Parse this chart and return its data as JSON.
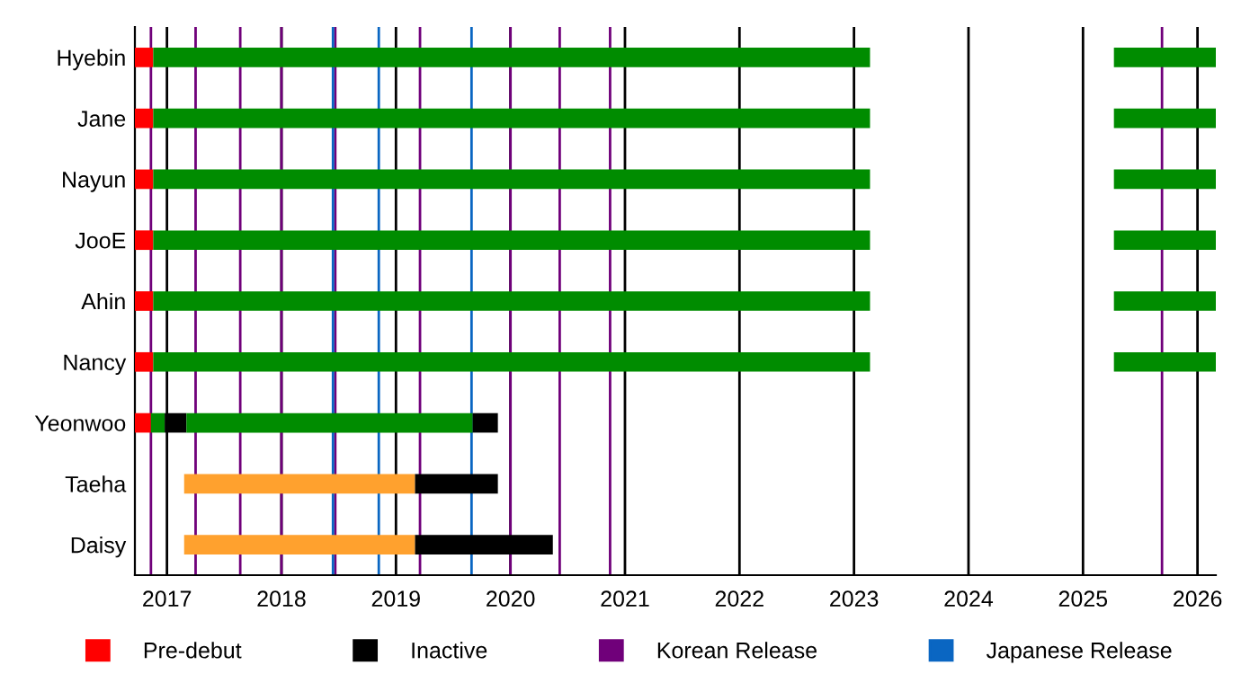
{
  "chart_data": {
    "type": "bar",
    "orientation": "horizontal",
    "categories": [
      "Hyebin",
      "Jane",
      "Nayun",
      "JooE",
      "Ahin",
      "Nancy",
      "Yeonwoo",
      "Taeha",
      "Daisy"
    ],
    "series": [
      {
        "name": "Pre-debut",
        "color": "#ff0000",
        "base": [
          2016.72,
          2016.72,
          2016.72,
          2016.72,
          2016.72,
          2016.72,
          2016.72,
          null,
          null
        ],
        "values": [
          0.16,
          0.16,
          0.16,
          0.16,
          0.16,
          0.16,
          0.14,
          null,
          null
        ]
      },
      {
        "color": "#008c00",
        "base": [
          2016.88,
          2016.88,
          2016.88,
          2016.88,
          2016.88,
          2016.88,
          2016.86,
          null,
          null
        ],
        "values": [
          6.26,
          6.26,
          6.26,
          6.26,
          6.26,
          6.26,
          0.12,
          null,
          null
        ]
      },
      {
        "name": "Inactive",
        "color": "#000000",
        "base": [
          null,
          null,
          null,
          null,
          null,
          null,
          2016.98,
          2019.165,
          2019.165
        ],
        "values": [
          null,
          null,
          null,
          null,
          null,
          null,
          0.19,
          0.725,
          1.205
        ]
      },
      {
        "color": "#008c00",
        "base": [
          2025.27,
          2025.27,
          2025.27,
          2025.27,
          2025.27,
          2025.27,
          2017.17,
          null,
          null
        ],
        "values": [
          0.89,
          0.89,
          0.89,
          0.89,
          0.89,
          0.89,
          2.5,
          null,
          null
        ]
      },
      {
        "color": "#000000",
        "base": [
          null,
          null,
          null,
          null,
          null,
          null,
          2019.67,
          null,
          null
        ],
        "values": [
          null,
          null,
          null,
          null,
          null,
          null,
          0.22,
          null,
          null
        ]
      },
      {
        "color": "#ffa12e",
        "base": [
          null,
          null,
          null,
          null,
          null,
          null,
          null,
          2017.15,
          2017.15
        ],
        "values": [
          null,
          null,
          null,
          null,
          null,
          null,
          null,
          2.015,
          2.015
        ]
      }
    ],
    "xlim": [
      2016.72,
      2026.16
    ],
    "xticks": [
      2017,
      2018,
      2019,
      2020,
      2021,
      2022,
      2023,
      2024,
      2025,
      2026
    ],
    "grid": "x",
    "legend": "bottom",
    "ref_lines": [
      {
        "axis": "x",
        "value": 2016.86,
        "label": "Korean Release",
        "color": "#70007a"
      },
      {
        "axis": "x",
        "value": 2017.25,
        "color": "#70007a"
      },
      {
        "axis": "x",
        "value": 2017.64,
        "color": "#70007a"
      },
      {
        "axis": "x",
        "value": 2018.0,
        "color": "#70007a"
      },
      {
        "axis": "x",
        "value": 2018.47,
        "color": "#70007a"
      },
      {
        "axis": "x",
        "value": 2019.21,
        "color": "#70007a"
      },
      {
        "axis": "x",
        "value": 2020.0,
        "color": "#70007a"
      },
      {
        "axis": "x",
        "value": 2020.43,
        "color": "#70007a"
      },
      {
        "axis": "x",
        "value": 2020.87,
        "color": "#70007a"
      },
      {
        "axis": "x",
        "value": 2025.69,
        "color": "#70007a"
      },
      {
        "axis": "x",
        "value": 2018.45,
        "label": "Japanese Release",
        "color": "#0a66c2"
      },
      {
        "axis": "x",
        "value": 2018.85,
        "color": "#0a66c2"
      },
      {
        "axis": "x",
        "value": 2019.66,
        "color": "#0a66c2"
      }
    ]
  }
}
